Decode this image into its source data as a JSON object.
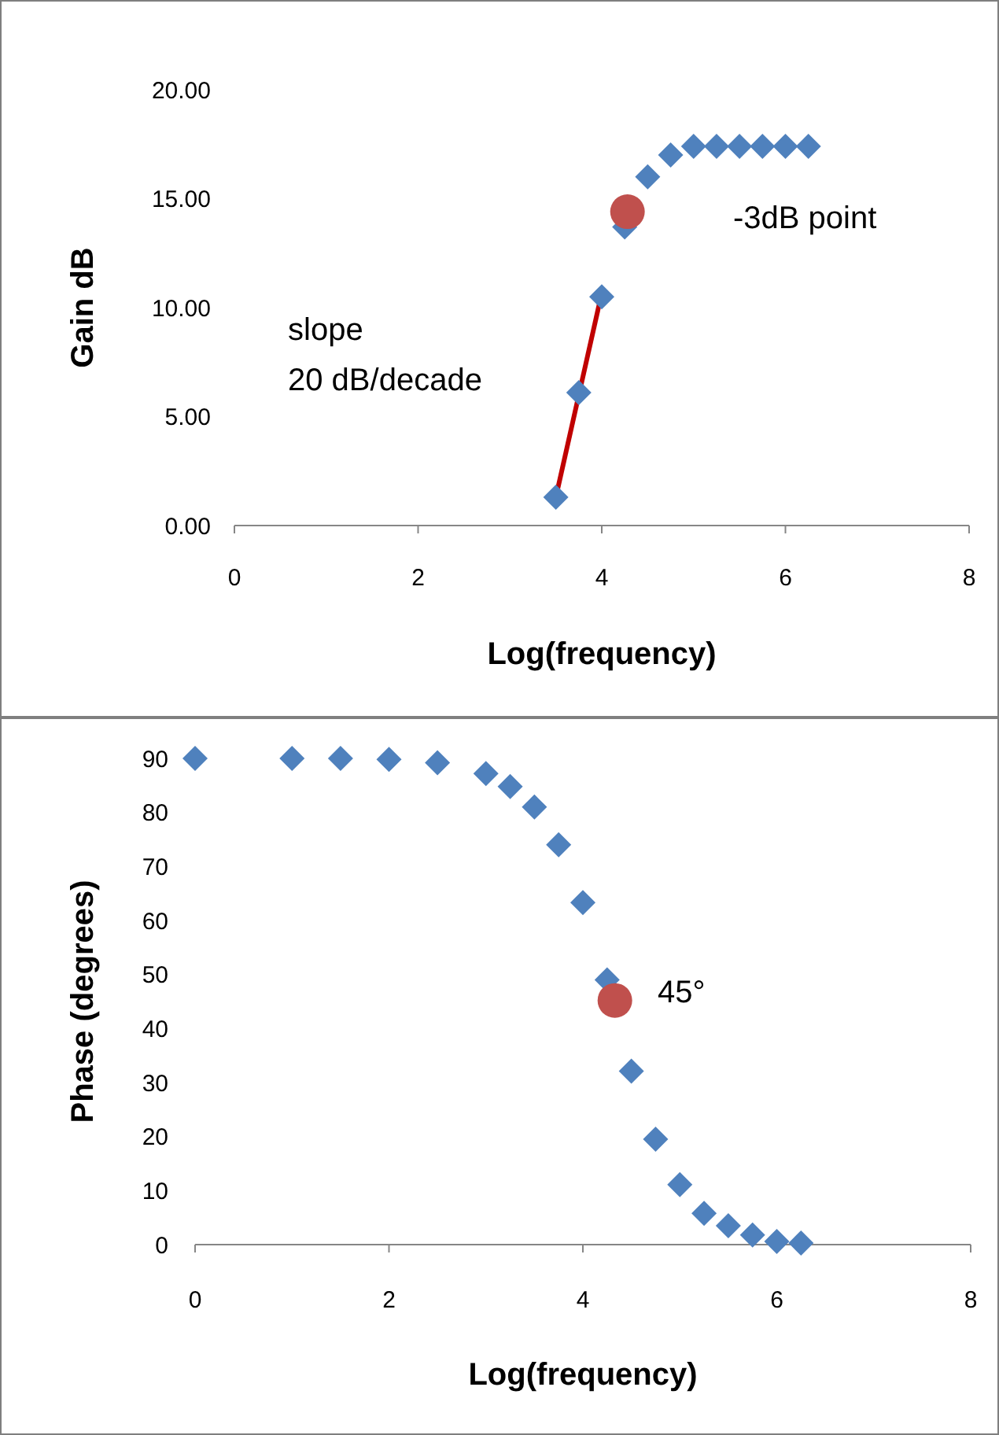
{
  "chart_data": [
    {
      "type": "scatter",
      "xlabel": "Log(frequency)",
      "ylabel": "Gain dB",
      "grid": false,
      "xlim": [
        0,
        8
      ],
      "xticks": [
        0,
        2,
        4,
        6,
        8
      ],
      "ylim": [
        0,
        20
      ],
      "yticks": [
        {
          "value": 0,
          "label": "0.00"
        },
        {
          "value": 5,
          "label": "5.00"
        },
        {
          "value": 10,
          "label": "10.00"
        },
        {
          "value": 15,
          "label": "15.00"
        },
        {
          "value": 20,
          "label": "20.00"
        }
      ],
      "series": [
        {
          "color": "#4f81bd",
          "marker": "diamond",
          "x": [
            3.5,
            3.75,
            4,
            4.25,
            4.5,
            4.75,
            5,
            5.25,
            5.5,
            5.75,
            6,
            6.25
          ],
          "values": [
            1.3,
            6.1,
            10.5,
            13.7,
            16.0,
            17.0,
            17.4,
            17.4,
            17.4,
            17.4,
            17.4,
            17.4
          ]
        },
        {
          "type": "line",
          "color": "#c00000",
          "marker": "none",
          "x": [
            3.5,
            3.98
          ],
          "values": [
            1.3,
            10.3
          ]
        },
        {
          "color": "#c0504d",
          "marker": "circle",
          "x": [
            4.28
          ],
          "values": [
            14.4
          ]
        }
      ],
      "annotations": [
        "slope\n20 dB/decade",
        "-3dB point"
      ]
    },
    {
      "type": "scatter",
      "xlabel": "Log(frequency)",
      "ylabel": "Phase (degrees)",
      "grid": false,
      "xlim": [
        0,
        8
      ],
      "xticks": [
        0,
        2,
        4,
        6,
        8
      ],
      "ylim": [
        0,
        90
      ],
      "yticks": [
        0,
        10,
        20,
        30,
        40,
        50,
        60,
        70,
        80,
        90
      ],
      "series": [
        {
          "color": "#4f81bd",
          "marker": "diamond",
          "x": [
            0,
            1,
            1.5,
            2,
            2.5,
            3,
            3.25,
            3.5,
            3.75,
            4,
            4.25,
            4.5,
            4.75,
            5,
            5.25,
            5.5,
            5.75,
            6,
            6.25
          ],
          "values": [
            90,
            90,
            90,
            89.8,
            89.2,
            87.2,
            84.8,
            81,
            74,
            63.3,
            49,
            32.1,
            19.5,
            11.1,
            5.8,
            3.5,
            1.8,
            0.6,
            0.3
          ]
        },
        {
          "color": "#c0504d",
          "marker": "circle",
          "x": [
            4.33
          ],
          "values": [
            45.2
          ]
        }
      ],
      "annotations": [
        "45°"
      ]
    }
  ]
}
